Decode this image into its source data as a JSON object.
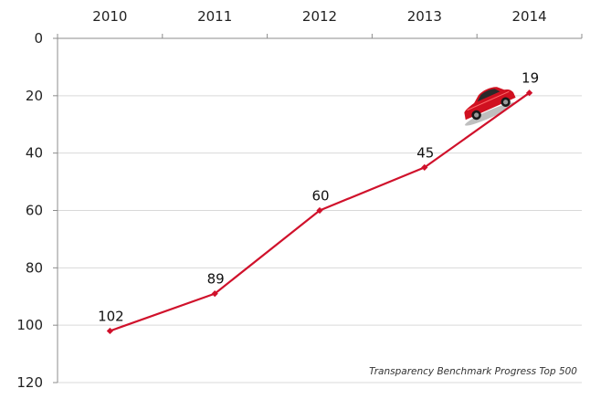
{
  "chart_data": {
    "type": "line",
    "x": [
      "2010",
      "2011",
      "2012",
      "2013",
      "2014"
    ],
    "series": [
      {
        "values": [
          102,
          89,
          60,
          45,
          19
        ]
      }
    ],
    "data_labels": [
      "102",
      "89",
      "60",
      "45",
      "19"
    ],
    "ylim": [
      120,
      0
    ],
    "y_inverted": true,
    "y_ticks": [
      0,
      20,
      40,
      60,
      80,
      100,
      120
    ],
    "x_axis_position": "top",
    "grid": "horizontal",
    "annotation": "Transparency Benchmark Progress Top 500",
    "line_color": "#d0112b",
    "decoration": "car-icon"
  }
}
